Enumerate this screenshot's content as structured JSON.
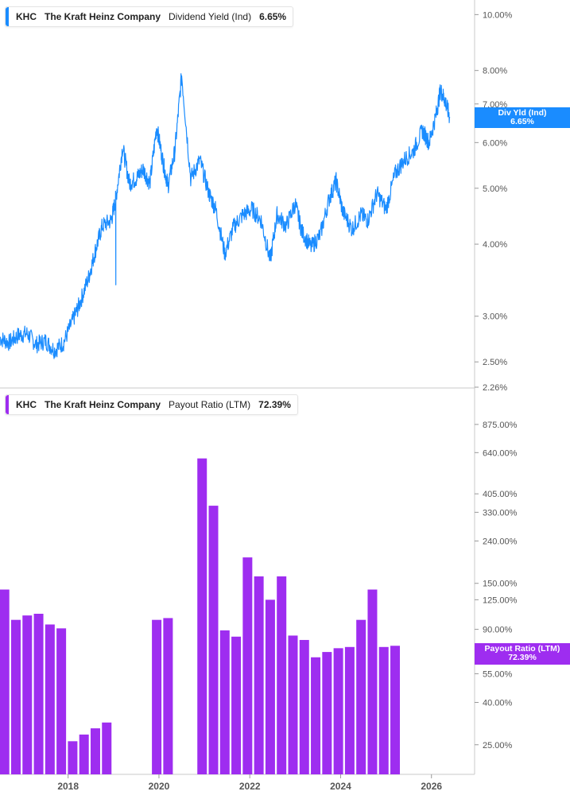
{
  "chart_data": [
    {
      "type": "line",
      "ticker": "KHC",
      "company": "The Kraft Heinz Company",
      "metric": "Dividend Yield (Ind)",
      "current_value": "6.65%",
      "flag_label": "Div Yld (Ind)",
      "flag_value": "6.65%",
      "color": "#1a8cff",
      "y_scale": "log",
      "ylim": [
        2.26,
        10.6
      ],
      "y_ticks": [
        "10.00%",
        "8.00%",
        "7.00%",
        "6.00%",
        "5.00%",
        "4.00%",
        "3.00%",
        "2.50%",
        "2.26%"
      ],
      "y_tick_values": [
        10,
        8,
        7,
        6,
        5,
        4,
        3,
        2.5,
        2.26
      ],
      "x": [
        2016.5,
        2016.7,
        2016.9,
        2017.1,
        2017.3,
        2017.5,
        2017.7,
        2017.9,
        2018.1,
        2018.25,
        2018.45,
        2018.6,
        2018.75,
        2018.95,
        2019.05,
        2019.2,
        2019.35,
        2019.5,
        2019.65,
        2019.8,
        2019.95,
        2020.1,
        2020.2,
        2020.35,
        2020.5,
        2020.7,
        2020.9,
        2021.1,
        2021.25,
        2021.45,
        2021.65,
        2021.85,
        2022.05,
        2022.25,
        2022.45,
        2022.6,
        2022.8,
        2023.0,
        2023.15,
        2023.35,
        2023.55,
        2023.75,
        2023.9,
        2024.05,
        2024.25,
        2024.45,
        2024.6,
        2024.8,
        2025.0,
        2025.2,
        2025.4,
        2025.6,
        2025.8,
        2025.95,
        2026.1,
        2026.2,
        2026.3,
        2026.4
      ],
      "y": [
        2.75,
        2.7,
        2.78,
        2.8,
        2.68,
        2.72,
        2.62,
        2.7,
        2.95,
        3.15,
        3.5,
        3.9,
        4.3,
        4.4,
        4.8,
        5.9,
        5.1,
        5.2,
        5.4,
        5.1,
        6.4,
        5.5,
        5.05,
        5.8,
        7.85,
        5.2,
        5.6,
        4.9,
        4.6,
        3.85,
        4.3,
        4.5,
        4.6,
        4.4,
        3.75,
        4.5,
        4.3,
        4.7,
        4.2,
        3.95,
        4.15,
        4.8,
        5.15,
        4.55,
        4.25,
        4.5,
        4.4,
        4.9,
        4.6,
        5.3,
        5.6,
        5.8,
        6.3,
        6.0,
        6.7,
        7.4,
        7.1,
        6.65
      ],
      "spike": {
        "x": 2019.05,
        "y": 3.4
      }
    },
    {
      "type": "bar",
      "ticker": "KHC",
      "company": "The Kraft Heinz Company",
      "metric": "Payout Ratio (LTM)",
      "current_value": "72.39%",
      "flag_label": "Payout Ratio (LTM)",
      "flag_value": "72.39%",
      "color": "#9e2df0",
      "y_scale": "log",
      "ylim": [
        18,
        1300
      ],
      "y_ticks": [
        "875.00%",
        "640.00%",
        "405.00%",
        "330.00%",
        "240.00%",
        "150.00%",
        "125.00%",
        "90.00%",
        "55.00%",
        "40.00%",
        "25.00%"
      ],
      "y_tick_values": [
        875,
        640,
        405,
        330,
        240,
        150,
        125,
        90,
        55,
        40,
        25
      ],
      "x": [
        2016.6,
        2016.85,
        2017.1,
        2017.35,
        2017.6,
        2017.85,
        2018.1,
        2018.35,
        2018.6,
        2018.85,
        2019.95,
        2020.2,
        2020.95,
        2021.2,
        2021.45,
        2021.7,
        2021.95,
        2022.2,
        2022.45,
        2022.7,
        2022.95,
        2023.2,
        2023.45,
        2023.7,
        2023.95,
        2024.2,
        2024.45,
        2024.7,
        2024.95,
        2025.2
      ],
      "values": [
        140,
        100,
        105,
        107,
        95,
        91,
        26,
        28,
        30,
        32,
        100,
        102,
        600,
        355,
        89,
        83,
        200,
        162,
        125,
        162,
        84,
        80,
        66,
        70,
        73,
        74,
        100,
        140,
        74,
        75
      ]
    }
  ],
  "x_axis": {
    "ticks": [
      "2018",
      "2020",
      "2022",
      "2024",
      "2026"
    ],
    "tick_values": [
      2018,
      2020,
      2022,
      2024,
      2026
    ]
  }
}
